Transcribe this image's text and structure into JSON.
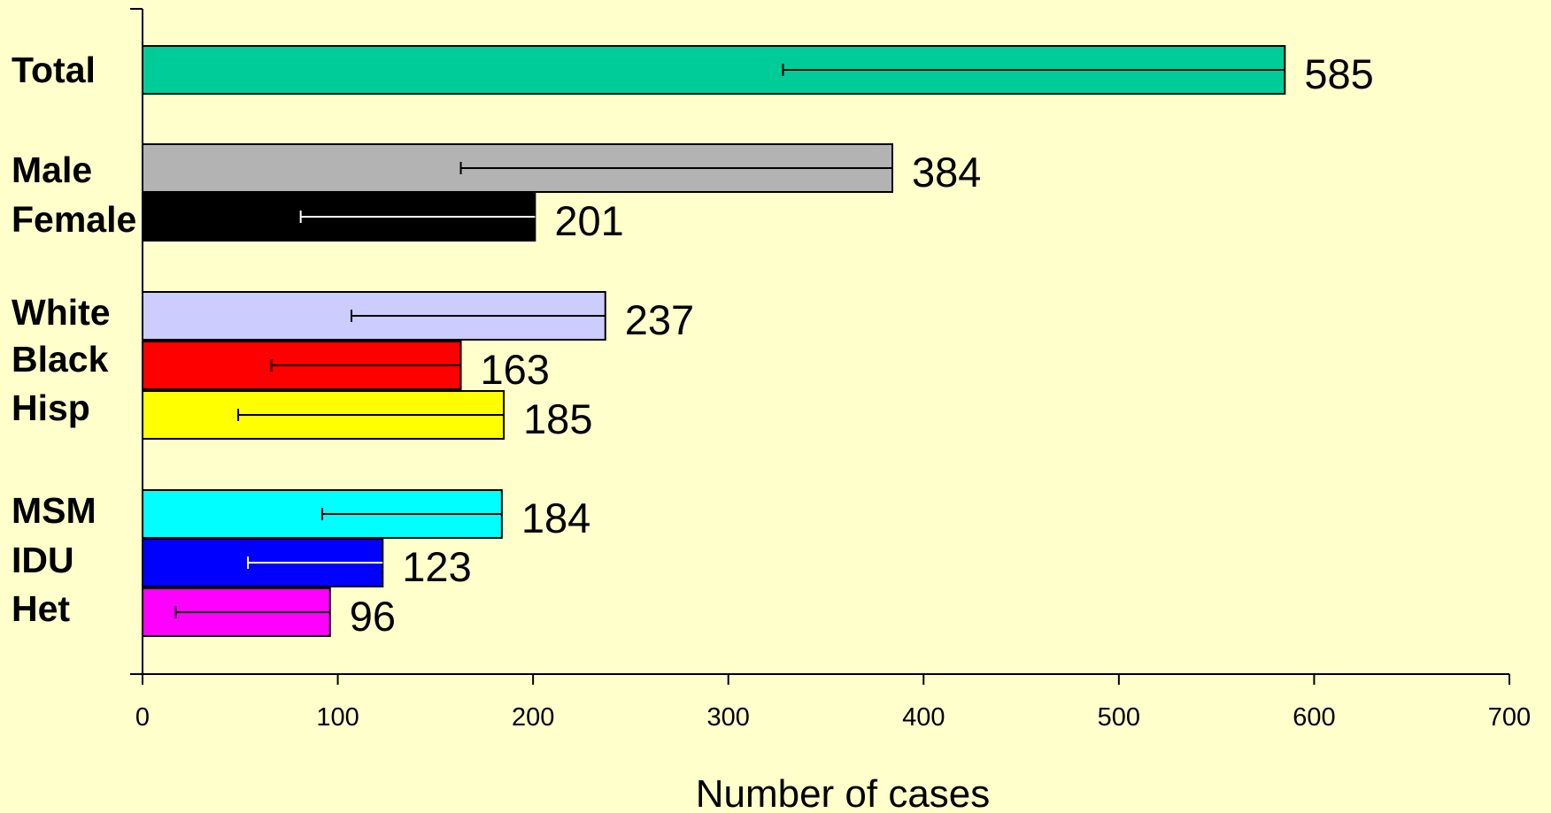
{
  "chart_data": {
    "type": "bar",
    "orientation": "horizontal",
    "xlabel": "Number of cases",
    "xlim": [
      0,
      700
    ],
    "xticks": [
      0,
      100,
      200,
      300,
      400,
      500,
      600,
      700
    ],
    "grid": false,
    "legend": false,
    "bars": [
      {
        "label": "Total",
        "value": 585,
        "error_low": 328,
        "color": "#00CC99",
        "error_color": "#000000"
      },
      {
        "label": "Male",
        "value": 384,
        "error_low": 163,
        "color": "#B3B3B3",
        "error_color": "#000000"
      },
      {
        "label": "Female",
        "value": 201,
        "error_low": 81,
        "color": "#000000",
        "error_color": "#FFFFFF"
      },
      {
        "label": "White",
        "value": 237,
        "error_low": 107,
        "color": "#CCCCFF",
        "error_color": "#000000"
      },
      {
        "label": "Black",
        "value": 163,
        "error_low": 66,
        "color": "#FF0000",
        "error_color": "#000000"
      },
      {
        "label": "Hisp",
        "value": 185,
        "error_low": 49,
        "color": "#FFFF00",
        "error_color": "#000000"
      },
      {
        "label": "MSM",
        "value": 184,
        "error_low": 92,
        "color": "#00FFFF",
        "error_color": "#000000"
      },
      {
        "label": "IDU",
        "value": 123,
        "error_low": 54,
        "color": "#0000FF",
        "error_color": "#FFFFFF"
      },
      {
        "label": "Het",
        "value": 96,
        "error_low": 17,
        "color": "#FF00FF",
        "error_color": "#000000"
      }
    ]
  }
}
